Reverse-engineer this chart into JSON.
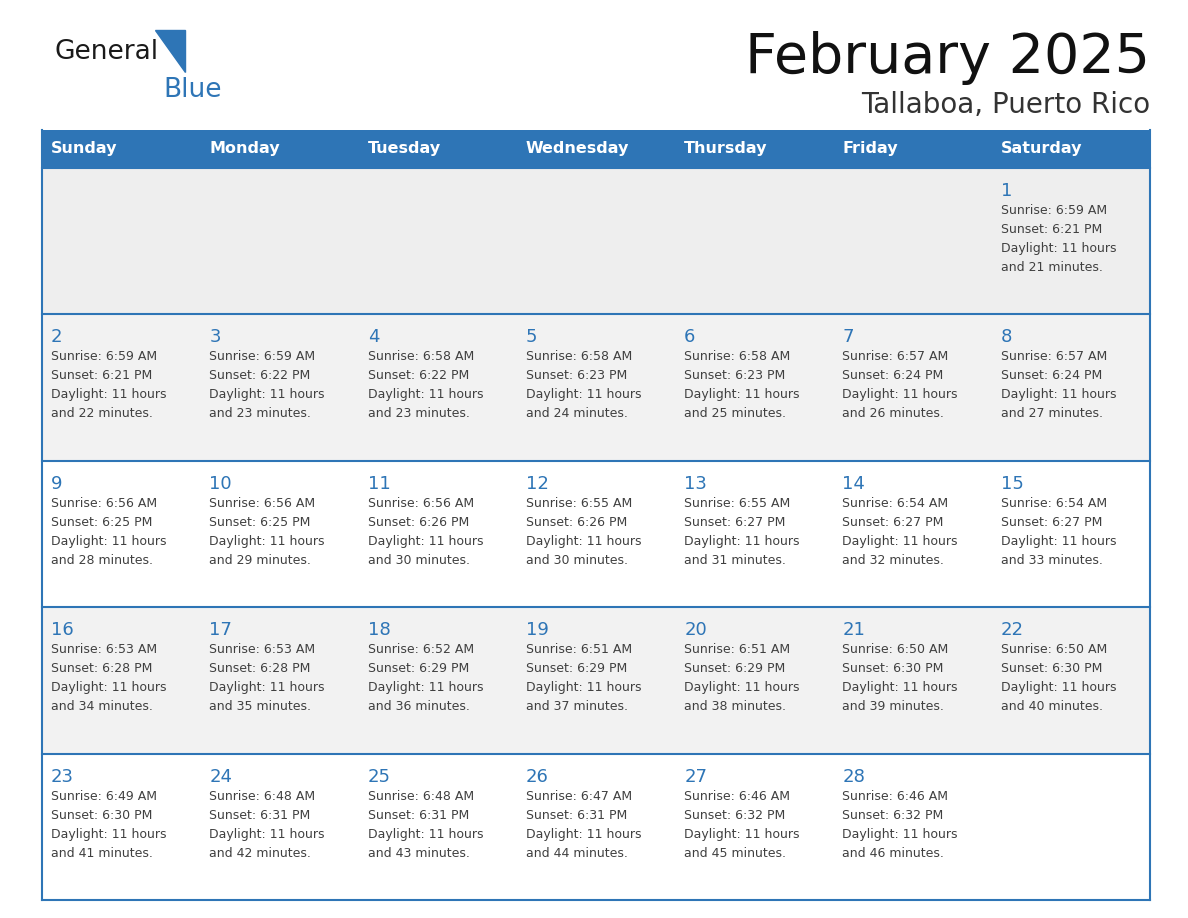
{
  "title": "February 2025",
  "subtitle": "Tallaboa, Puerto Rico",
  "header_bg": "#2E75B6",
  "header_text_color": "#FFFFFF",
  "days_of_week": [
    "Sunday",
    "Monday",
    "Tuesday",
    "Wednesday",
    "Thursday",
    "Friday",
    "Saturday"
  ],
  "cell_bg_row0": "#EEEEEE",
  "cell_bg_row1": "#F2F2F2",
  "cell_bg_row2": "#FFFFFF",
  "cell_bg_row3": "#F2F2F2",
  "cell_bg_row4": "#FFFFFF",
  "cell_border_color": "#2E75B6",
  "day_text_color": "#2E75B6",
  "info_text_color": "#404040",
  "calendar_data": [
    [
      null,
      null,
      null,
      null,
      null,
      null,
      {
        "day": 1,
        "sunrise": "6:59 AM",
        "sunset": "6:21 PM",
        "daylight": "11 hours and 21 minutes."
      }
    ],
    [
      {
        "day": 2,
        "sunrise": "6:59 AM",
        "sunset": "6:21 PM",
        "daylight": "11 hours and 22 minutes."
      },
      {
        "day": 3,
        "sunrise": "6:59 AM",
        "sunset": "6:22 PM",
        "daylight": "11 hours and 23 minutes."
      },
      {
        "day": 4,
        "sunrise": "6:58 AM",
        "sunset": "6:22 PM",
        "daylight": "11 hours and 23 minutes."
      },
      {
        "day": 5,
        "sunrise": "6:58 AM",
        "sunset": "6:23 PM",
        "daylight": "11 hours and 24 minutes."
      },
      {
        "day": 6,
        "sunrise": "6:58 AM",
        "sunset": "6:23 PM",
        "daylight": "11 hours and 25 minutes."
      },
      {
        "day": 7,
        "sunrise": "6:57 AM",
        "sunset": "6:24 PM",
        "daylight": "11 hours and 26 minutes."
      },
      {
        "day": 8,
        "sunrise": "6:57 AM",
        "sunset": "6:24 PM",
        "daylight": "11 hours and 27 minutes."
      }
    ],
    [
      {
        "day": 9,
        "sunrise": "6:56 AM",
        "sunset": "6:25 PM",
        "daylight": "11 hours and 28 minutes."
      },
      {
        "day": 10,
        "sunrise": "6:56 AM",
        "sunset": "6:25 PM",
        "daylight": "11 hours and 29 minutes."
      },
      {
        "day": 11,
        "sunrise": "6:56 AM",
        "sunset": "6:26 PM",
        "daylight": "11 hours and 30 minutes."
      },
      {
        "day": 12,
        "sunrise": "6:55 AM",
        "sunset": "6:26 PM",
        "daylight": "11 hours and 30 minutes."
      },
      {
        "day": 13,
        "sunrise": "6:55 AM",
        "sunset": "6:27 PM",
        "daylight": "11 hours and 31 minutes."
      },
      {
        "day": 14,
        "sunrise": "6:54 AM",
        "sunset": "6:27 PM",
        "daylight": "11 hours and 32 minutes."
      },
      {
        "day": 15,
        "sunrise": "6:54 AM",
        "sunset": "6:27 PM",
        "daylight": "11 hours and 33 minutes."
      }
    ],
    [
      {
        "day": 16,
        "sunrise": "6:53 AM",
        "sunset": "6:28 PM",
        "daylight": "11 hours and 34 minutes."
      },
      {
        "day": 17,
        "sunrise": "6:53 AM",
        "sunset": "6:28 PM",
        "daylight": "11 hours and 35 minutes."
      },
      {
        "day": 18,
        "sunrise": "6:52 AM",
        "sunset": "6:29 PM",
        "daylight": "11 hours and 36 minutes."
      },
      {
        "day": 19,
        "sunrise": "6:51 AM",
        "sunset": "6:29 PM",
        "daylight": "11 hours and 37 minutes."
      },
      {
        "day": 20,
        "sunrise": "6:51 AM",
        "sunset": "6:29 PM",
        "daylight": "11 hours and 38 minutes."
      },
      {
        "day": 21,
        "sunrise": "6:50 AM",
        "sunset": "6:30 PM",
        "daylight": "11 hours and 39 minutes."
      },
      {
        "day": 22,
        "sunrise": "6:50 AM",
        "sunset": "6:30 PM",
        "daylight": "11 hours and 40 minutes."
      }
    ],
    [
      {
        "day": 23,
        "sunrise": "6:49 AM",
        "sunset": "6:30 PM",
        "daylight": "11 hours and 41 minutes."
      },
      {
        "day": 24,
        "sunrise": "6:48 AM",
        "sunset": "6:31 PM",
        "daylight": "11 hours and 42 minutes."
      },
      {
        "day": 25,
        "sunrise": "6:48 AM",
        "sunset": "6:31 PM",
        "daylight": "11 hours and 43 minutes."
      },
      {
        "day": 26,
        "sunrise": "6:47 AM",
        "sunset": "6:31 PM",
        "daylight": "11 hours and 44 minutes."
      },
      {
        "day": 27,
        "sunrise": "6:46 AM",
        "sunset": "6:32 PM",
        "daylight": "11 hours and 45 minutes."
      },
      {
        "day": 28,
        "sunrise": "6:46 AM",
        "sunset": "6:32 PM",
        "daylight": "11 hours and 46 minutes."
      },
      null
    ]
  ],
  "logo_general_color": "#1a1a1a",
  "logo_blue_color": "#2E75B6",
  "logo_triangle_color": "#2E75B6"
}
